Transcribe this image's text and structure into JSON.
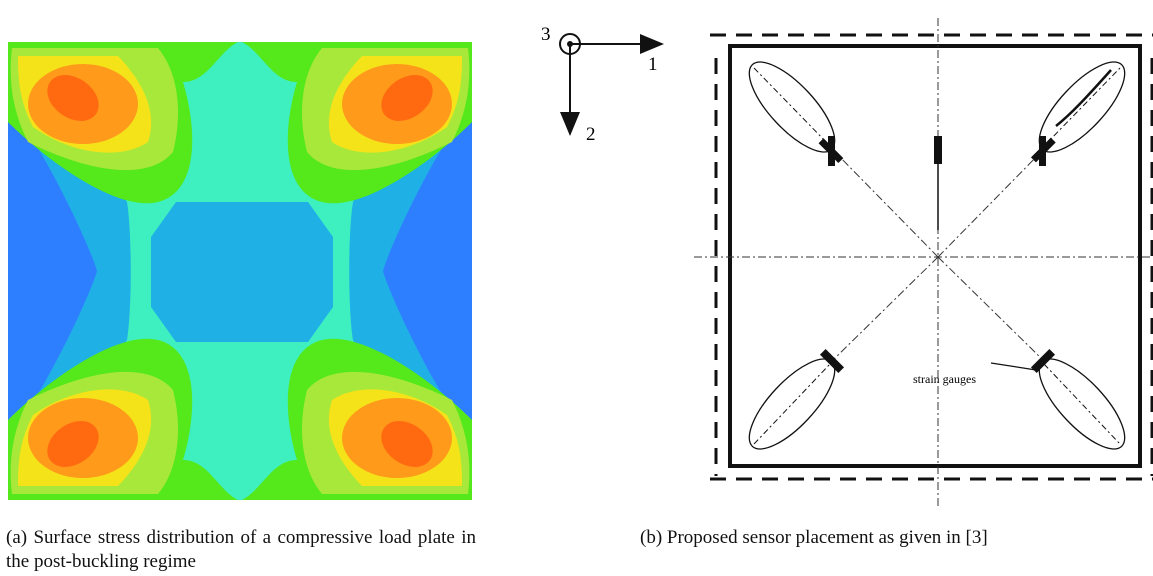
{
  "panel_a": {
    "caption": "(a) Surface stress distribution of a compressive load plate in the post-buckling regime",
    "colors": {
      "outer": "#2e7fff",
      "level1": "#1fb0e6",
      "level2": "#3ef0c0",
      "level3": "#55e81a",
      "level4": "#a8e83a",
      "level5": "#f5e31a",
      "level6": "#ff9a1a",
      "peak": "#ff6a10",
      "center": "#1fb0e6"
    }
  },
  "panel_b": {
    "caption": "(b) Proposed sensor placement as given in [3]",
    "axes": {
      "origin_label": "3",
      "x_label": "1",
      "y_label": "2"
    },
    "annotation": "strain gauges"
  }
}
